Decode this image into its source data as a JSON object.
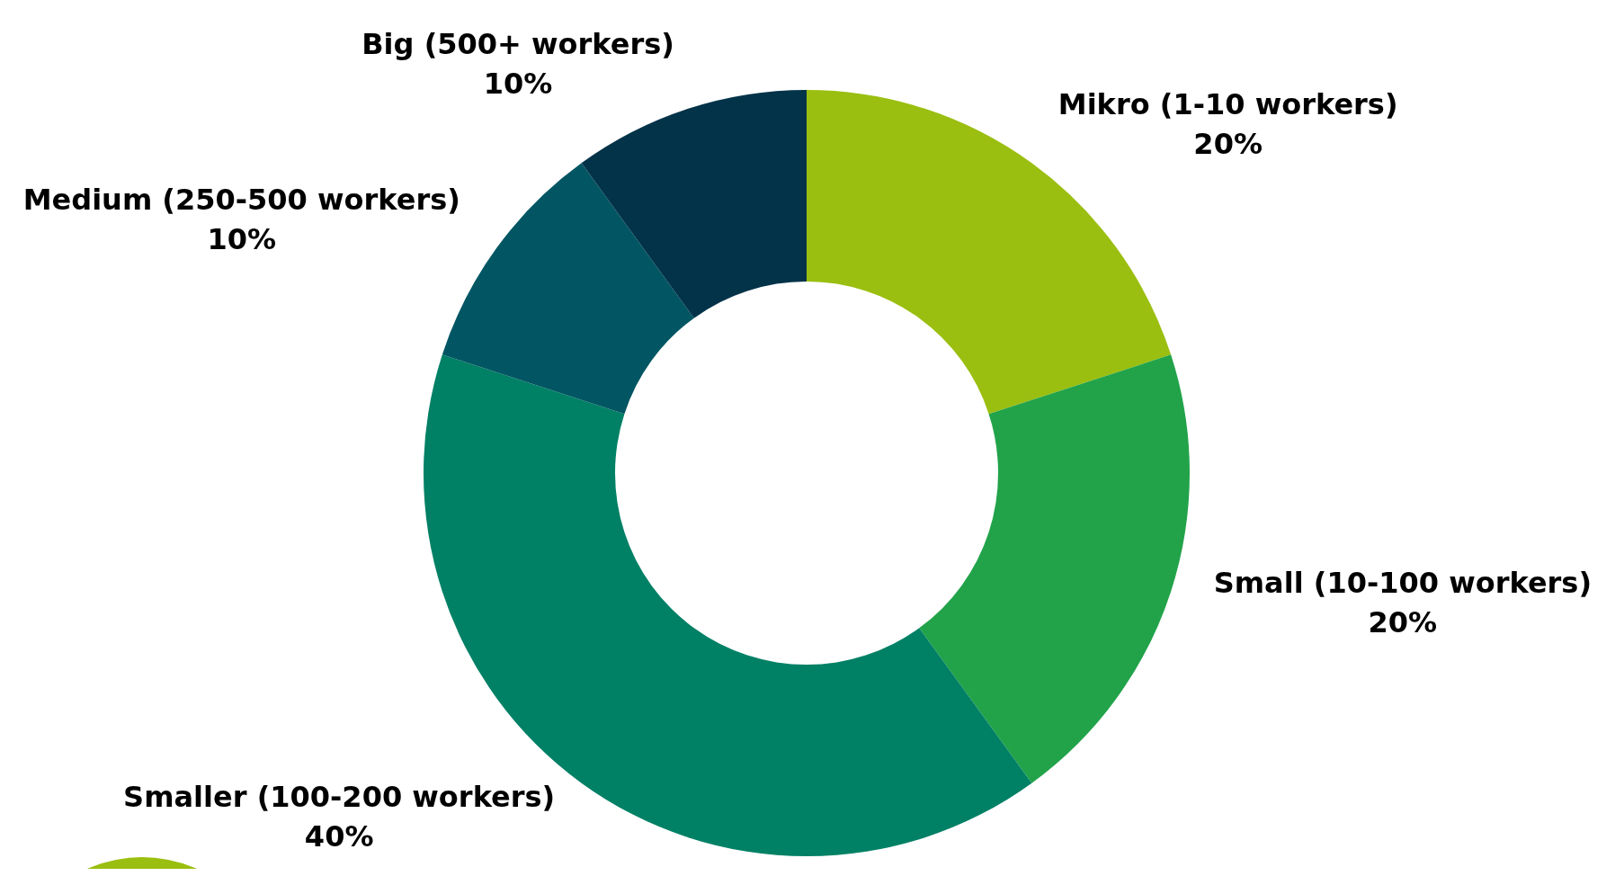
{
  "chart_data": {
    "type": "donut",
    "categories": [
      "Mikro (1-10 workers)",
      "Small (10-100 workers)",
      "Smaller (100-200 workers)",
      "Medium (250-500 workers)",
      "Big (500+ workers)"
    ],
    "values": [
      20,
      20,
      40,
      10,
      10
    ],
    "value_labels": [
      "20%",
      "20%",
      "40%",
      "10%",
      "10%"
    ],
    "colors": [
      "#9abf10",
      "#22a34a",
      "#008065",
      "#025663",
      "#023349"
    ],
    "legend": false
  }
}
